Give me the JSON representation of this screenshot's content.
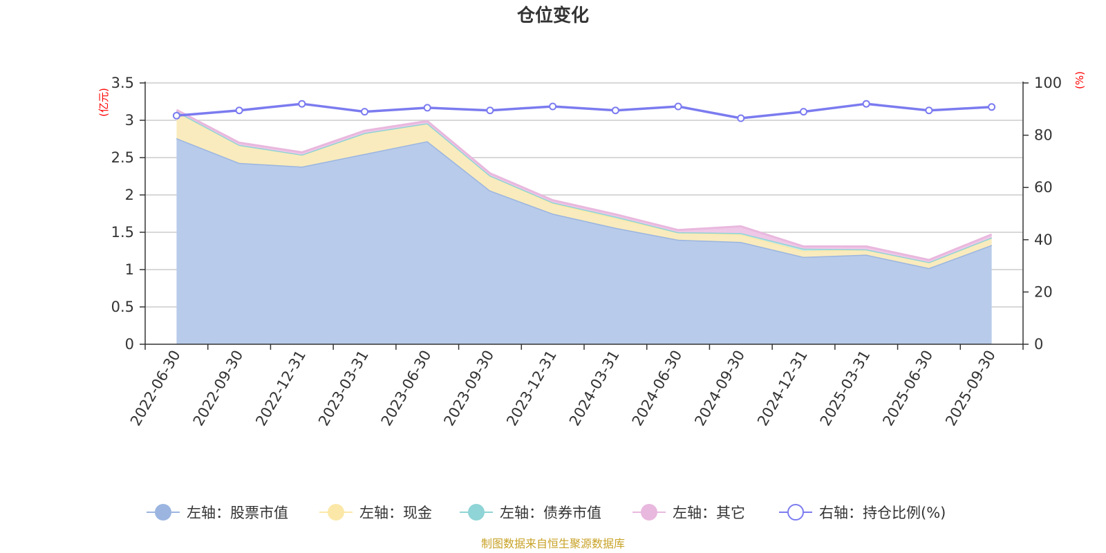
{
  "chart_data": {
    "type": "area",
    "title": "仓位变化",
    "left_axis_unit": "(亿元)",
    "right_axis_unit": "(%)",
    "categories": [
      "2022-06-30",
      "2022-09-30",
      "2022-12-31",
      "2023-03-31",
      "2023-06-30",
      "2023-09-30",
      "2023-12-31",
      "2024-03-31",
      "2024-06-30",
      "2024-09-30",
      "2024-12-31",
      "2025-03-31",
      "2025-06-30",
      "2025-09-30"
    ],
    "left_ylim": [
      0,
      3.5
    ],
    "left_ticks": [
      "0",
      "0.5",
      "1",
      "1.5",
      "2",
      "2.5",
      "3",
      "3.5"
    ],
    "left_tick_values": [
      0,
      0.5,
      1,
      1.5,
      2,
      2.5,
      3,
      3.5
    ],
    "right_ylim": [
      0,
      100
    ],
    "right_ticks": [
      "0",
      "20",
      "40",
      "60",
      "80",
      "100"
    ],
    "right_tick_values": [
      0,
      20,
      40,
      60,
      80,
      100
    ],
    "stacked_series": [
      {
        "name": "左轴：股票市值",
        "color": "#9bb5e0",
        "fill": "#b8cbea",
        "values": [
          2.76,
          2.43,
          2.38,
          2.55,
          2.72,
          2.06,
          1.75,
          1.56,
          1.4,
          1.37,
          1.17,
          1.2,
          1.02,
          1.33
        ]
      },
      {
        "name": "左轴：现金",
        "color": "#fbe8a8",
        "fill": "#f9ebbd",
        "values": [
          0.36,
          0.24,
          0.16,
          0.28,
          0.24,
          0.2,
          0.14,
          0.13,
          0.1,
          0.1,
          0.08,
          0.07,
          0.08,
          0.1
        ]
      },
      {
        "name": "左轴：债券市值",
        "color": "#8fd4d6",
        "fill": "#c9e8e6",
        "values": [
          0.0,
          0.0,
          0.0,
          0.0,
          0.0,
          0.0,
          0.01,
          0.02,
          0.0,
          0.02,
          0.03,
          0.0,
          0.0,
          0.0
        ]
      },
      {
        "name": "左轴：其它",
        "color": "#e9b8de",
        "fill": "#efc8e7",
        "values": [
          0.02,
          0.03,
          0.03,
          0.03,
          0.03,
          0.03,
          0.03,
          0.03,
          0.03,
          0.09,
          0.03,
          0.04,
          0.03,
          0.04
        ]
      }
    ],
    "line_series": {
      "name": "右轴：持仓比例(%)",
      "color": "#7b7bf0",
      "values": [
        87.5,
        89.5,
        92.0,
        89.0,
        90.5,
        89.5,
        91.0,
        89.5,
        91.0,
        86.5,
        89.0,
        92.0,
        89.5,
        90.8
      ]
    },
    "legend_position": "bottom",
    "grid": true,
    "source": "制图数据来自恒生聚源数据库"
  }
}
